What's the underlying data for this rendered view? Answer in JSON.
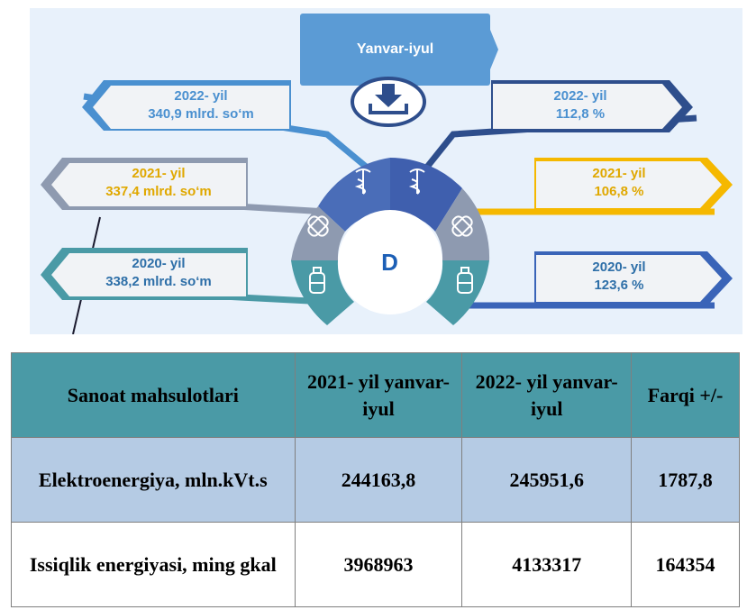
{
  "infographic": {
    "header": "Yanvar-iyul",
    "center_letter": "D",
    "left": [
      {
        "year": "2022- yil",
        "value": "340,9 mlrd. so‘m",
        "color": "#4a90d0"
      },
      {
        "year": "2021- yil",
        "value": "337,4 mlrd. so‘m",
        "color": "#f5b800"
      },
      {
        "year": "2020- yil",
        "value": "338,2 mlrd. so‘m",
        "color": "#2e6fa8"
      }
    ],
    "right": [
      {
        "year": "2022- yil",
        "value": "112,8 %",
        "color": "#4a90d0"
      },
      {
        "year": "2021- yil",
        "value": "106,8 %",
        "color": "#f5b800"
      },
      {
        "year": "2020- yil",
        "value": "123,6 %",
        "color": "#2e6fa8"
      }
    ],
    "icons": [
      "download-icon",
      "caduceus-icon",
      "bandage-icon",
      "bottle-icon"
    ]
  },
  "table": {
    "headers": [
      "Sanoat mahsulotlari",
      "2021- yil yanvar-iyul",
      "2022- yil yanvar-iyul",
      "Farqi +/-"
    ],
    "rows": [
      {
        "name": "Elektroenergiya, mln.kVt.s",
        "v2021": "244163,8",
        "v2022": "245951,6",
        "diff": "1787,8"
      },
      {
        "name": "Issiqlik energiyasi, ming gkal",
        "v2021": "3968963",
        "v2022": "4133317",
        "diff": "164354"
      }
    ]
  }
}
